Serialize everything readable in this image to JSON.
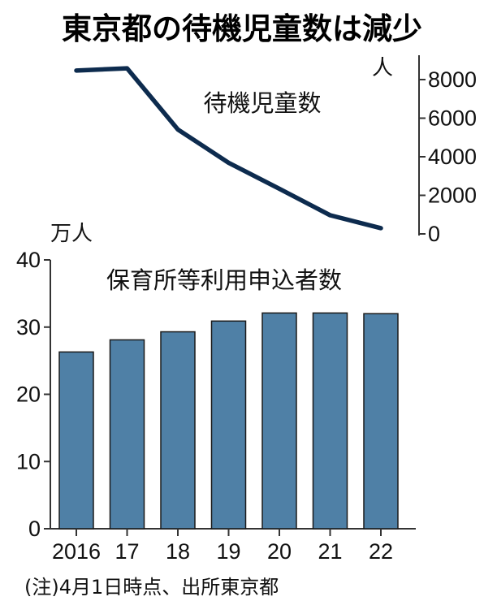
{
  "title": "東京都の待機児童数は減少",
  "note": "(注)4月1日時点、出所東京都",
  "colors": {
    "line": "#0d2b4e",
    "bar": "#4f80a6",
    "bar_edge": "#1a1a1a",
    "axis": "#333333"
  },
  "chart_data": [
    {
      "type": "line",
      "unit": "人",
      "series": [
        {
          "name": "待機児童数",
          "values": [
            8466,
            8586,
            5414,
            3690,
            2343,
            969,
            300
          ]
        }
      ],
      "x": [
        "2016",
        "17",
        "18",
        "19",
        "20",
        "21",
        "22"
      ],
      "ylim": [
        0,
        8000
      ],
      "yticks": [
        "0",
        "2000",
        "4000",
        "6000",
        "8000"
      ],
      "axis_side": "right"
    },
    {
      "type": "bar",
      "unit": "万人",
      "series": [
        {
          "name": "保育所等利用申込者数",
          "values": [
            26.3,
            28.1,
            29.3,
            30.9,
            32.1,
            32.1,
            32.0
          ]
        }
      ],
      "categories": [
        "2016",
        "17",
        "18",
        "19",
        "20",
        "21",
        "22"
      ],
      "ylim": [
        0,
        40
      ],
      "yticks": [
        "0",
        "10",
        "20",
        "30",
        "40"
      ],
      "axis_side": "left"
    }
  ]
}
